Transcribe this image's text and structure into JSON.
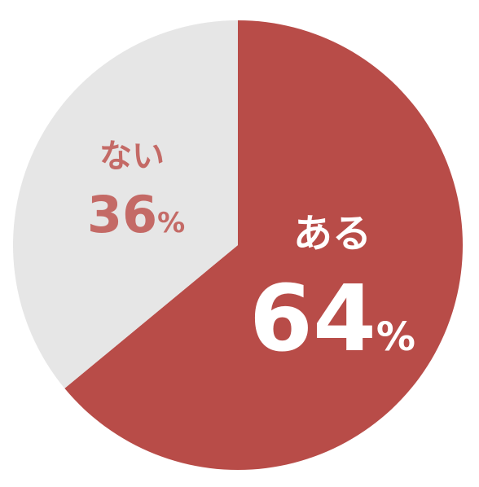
{
  "chart_data": {
    "type": "pie",
    "slices": [
      {
        "label": "ある",
        "value": 64,
        "value_text": "64",
        "unit": "%",
        "color": "#b84c48",
        "label_color": "#ffffff"
      },
      {
        "label": "ない",
        "value": 36,
        "value_text": "36",
        "unit": "%",
        "color": "#e6e6e6",
        "label_color": "#c46a66"
      }
    ],
    "start": "12 o'clock",
    "direction": "clockwise"
  }
}
